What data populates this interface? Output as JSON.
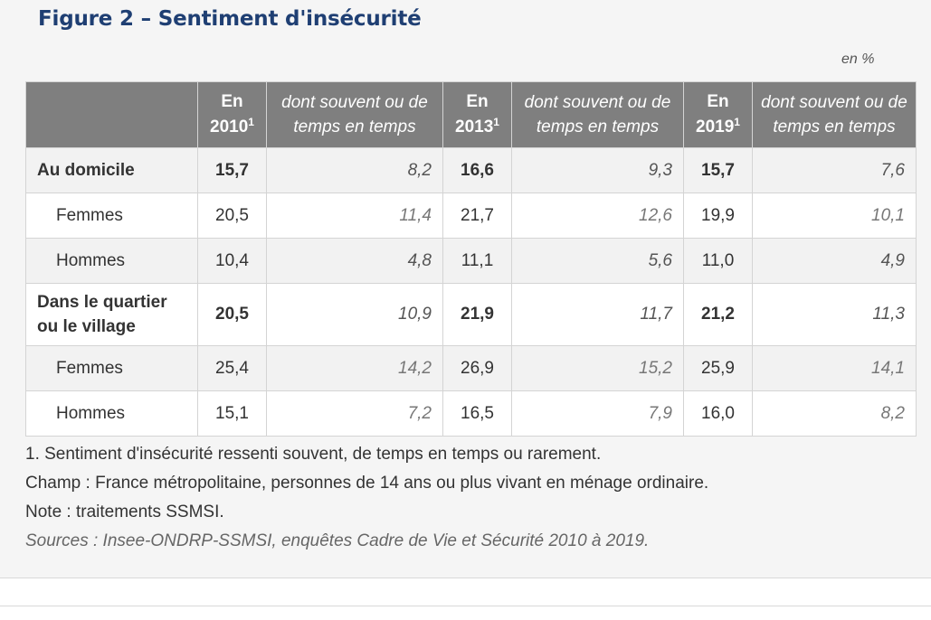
{
  "figure": {
    "title": "Figure 2 – Sentiment d'insécurité",
    "unit": "en %"
  },
  "table": {
    "headers": [
      {
        "text": "En 2010",
        "sup": "1"
      },
      {
        "text": "dont souvent ou de temps en temps"
      },
      {
        "text": "En 2013",
        "sup": "1"
      },
      {
        "text": "dont souvent ou de temps en temps"
      },
      {
        "text": "En 2019",
        "sup": "1"
      },
      {
        "text": "dont souvent ou de temps en temps"
      }
    ],
    "rows": [
      {
        "label": "Au domicile",
        "values": [
          "15,7",
          "8,2",
          "16,6",
          "9,3",
          "15,7",
          "7,6"
        ]
      },
      {
        "label": "Femmes",
        "values": [
          "20,5",
          "11,4",
          "21,7",
          "12,6",
          "19,9",
          "10,1"
        ]
      },
      {
        "label": "Hommes",
        "values": [
          "10,4",
          "4,8",
          "11,1",
          "5,6",
          "11,0",
          "4,9"
        ]
      },
      {
        "label": "Dans le quartier ou le village",
        "values": [
          "20,5",
          "10,9",
          "21,9",
          "11,7",
          "21,2",
          "11,3"
        ]
      },
      {
        "label": "Femmes",
        "values": [
          "25,4",
          "14,2",
          "26,9",
          "15,2",
          "25,9",
          "14,1"
        ]
      },
      {
        "label": "Hommes",
        "values": [
          "15,1",
          "7,2",
          "16,5",
          "7,9",
          "16,0",
          "8,2"
        ]
      }
    ]
  },
  "notes": {
    "footnote": "1. Sentiment d'insécurité ressenti souvent, de temps en temps ou rarement.",
    "champ": "Champ : France métropolitaine, personnes de 14 ans ou plus vivant en ménage ordinaire.",
    "note": "Note : traitements SSMSI.",
    "sources": "Sources : Insee-ONDRP-SSMSI, enquêtes Cadre de Vie et Sécurité 2010 à 2019."
  }
}
